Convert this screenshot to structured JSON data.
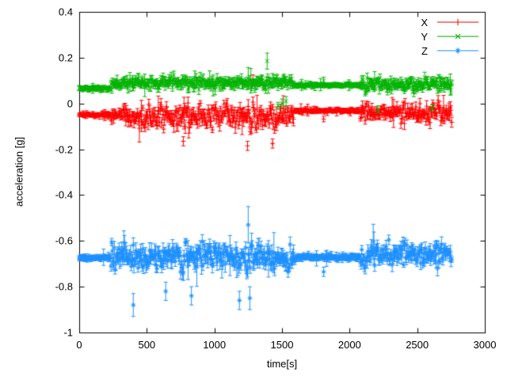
{
  "figure": {
    "background": "#ffffff",
    "axis_color": "#000000"
  },
  "chart_data": {
    "type": "scatter",
    "style": "points-with-yerrorbars",
    "title": "",
    "xlabel": "time[s]",
    "ylabel": "acceleration [g]",
    "xlim": [
      0,
      3000
    ],
    "ylim": [
      -1,
      0.4
    ],
    "xticks": [
      0,
      500,
      1000,
      1500,
      2000,
      2500,
      3000
    ],
    "yticks": [
      -1,
      -0.8,
      -0.6,
      -0.4,
      -0.2,
      0,
      0.2,
      0.4
    ],
    "grid": false,
    "legend_position": "top-right-inside",
    "sample_step_s": 5,
    "t_end": 2755,
    "series": [
      {
        "name": "X",
        "color": "#ff0000",
        "marker": "plus",
        "segments": [
          [
            0,
            235,
            -0.05,
            0.007,
            0.008
          ],
          [
            235,
            330,
            -0.05,
            0.025,
            0.015
          ],
          [
            330,
            1590,
            -0.055,
            0.045,
            0.02
          ],
          [
            1590,
            2080,
            -0.032,
            0.007,
            0.008
          ],
          [
            2080,
            2756,
            -0.042,
            0.038,
            0.018
          ]
        ],
        "spikes": [
          {
            "t": 1285,
            "y": 0.1,
            "err": 0.025
          },
          {
            "t": 770,
            "y": -0.165,
            "err": 0.02
          },
          {
            "t": 1245,
            "y": -0.185,
            "err": 0.02
          },
          {
            "t": 1430,
            "y": -0.175,
            "err": 0.02
          },
          {
            "t": 1808,
            "y": -0.068,
            "err": 0.012
          }
        ]
      },
      {
        "name": "Y",
        "color": "#00b300",
        "marker": "cross",
        "segments": [
          [
            0,
            235,
            0.065,
            0.007,
            0.008
          ],
          [
            235,
            1590,
            0.09,
            0.022,
            0.015
          ],
          [
            1590,
            2080,
            0.08,
            0.006,
            0.008
          ],
          [
            2080,
            2756,
            0.085,
            0.028,
            0.015
          ]
        ],
        "spikes": [
          {
            "t": 1390,
            "y": 0.185,
            "err": 0.035
          },
          {
            "t": 1470,
            "y": -0.01,
            "err": 0.015
          },
          {
            "t": 1500,
            "y": 0.0,
            "err": 0.02
          },
          {
            "t": 1530,
            "y": 0.01,
            "err": 0.02
          },
          {
            "t": 2210,
            "y": -0.025,
            "err": 0.015
          },
          {
            "t": 2610,
            "y": -0.02,
            "err": 0.015
          },
          {
            "t": 1808,
            "y": 0.1,
            "err": 0.015
          }
        ]
      },
      {
        "name": "Z",
        "color": "#1e90ff",
        "marker": "star",
        "segments": [
          [
            0,
            235,
            -0.675,
            0.009,
            0.01
          ],
          [
            235,
            1590,
            -0.67,
            0.05,
            0.025
          ],
          [
            1590,
            2080,
            -0.672,
            0.01,
            0.01
          ],
          [
            2080,
            2756,
            -0.66,
            0.042,
            0.022
          ]
        ],
        "spikes": [
          {
            "t": 400,
            "y": -0.88,
            "err": 0.05
          },
          {
            "t": 640,
            "y": -0.82,
            "err": 0.04
          },
          {
            "t": 830,
            "y": -0.84,
            "err": 0.04
          },
          {
            "t": 1185,
            "y": -0.86,
            "err": 0.04
          },
          {
            "t": 1250,
            "y": -0.53,
            "err": 0.08
          },
          {
            "t": 1262,
            "y": -0.85,
            "err": 0.05
          },
          {
            "t": 1808,
            "y": -0.735,
            "err": 0.02
          }
        ]
      }
    ]
  }
}
